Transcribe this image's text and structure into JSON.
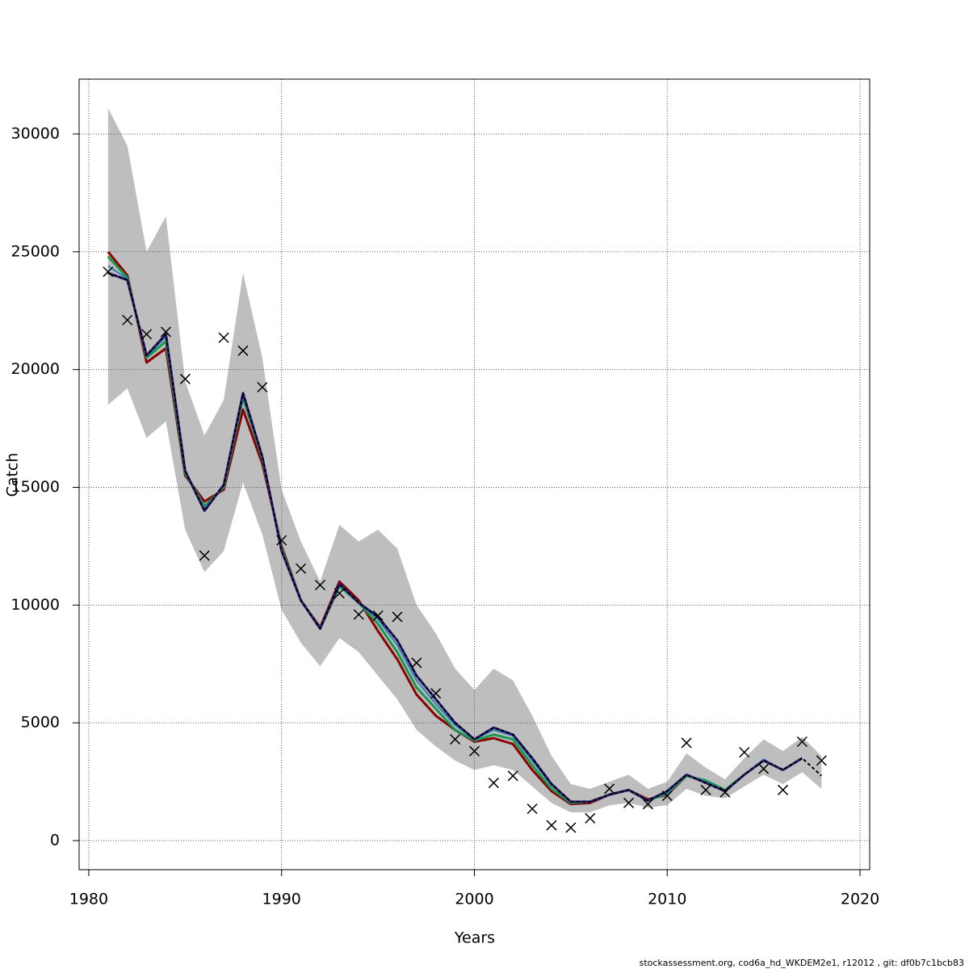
{
  "chart_data": {
    "type": "line",
    "xlabel": "Years",
    "ylabel": "Catch",
    "footer": "stockassessment.org, cod6a_hd_WKDEM2e1, r12012 , git: df0b7c1bcb83",
    "x": [
      1981,
      1982,
      1983,
      1984,
      1985,
      1986,
      1987,
      1988,
      1989,
      1990,
      1991,
      1992,
      1993,
      1994,
      1995,
      1996,
      1997,
      1998,
      1999,
      2000,
      2001,
      2002,
      2003,
      2004,
      2005,
      2006,
      2007,
      2008,
      2009,
      2010,
      2011,
      2012,
      2013,
      2014,
      2015,
      2016,
      2017,
      2018
    ],
    "xlim": [
      1979.5,
      2020.5
    ],
    "xticks": [
      1980,
      1990,
      2000,
      2010,
      2020
    ],
    "ylim": [
      -1234,
      32330
    ],
    "yticks": [
      0,
      5000,
      10000,
      15000,
      20000,
      25000,
      30000
    ],
    "grid": true,
    "band": {
      "color": "#bebebe",
      "upper": [
        31100,
        29500,
        25000,
        26500,
        19500,
        17200,
        18700,
        24100,
        20500,
        14900,
        12700,
        11000,
        13400,
        12700,
        13200,
        12400,
        10000,
        8800,
        7300,
        6400,
        7300,
        6800,
        5300,
        3600,
        2400,
        2200,
        2500,
        2800,
        2200,
        2500,
        3700,
        3100,
        2600,
        3500,
        4300,
        3800,
        4400,
        3600
      ],
      "lower": [
        18500,
        19200,
        17100,
        17800,
        13200,
        11400,
        12300,
        15200,
        13000,
        9800,
        8400,
        7400,
        8600,
        8000,
        7000,
        6000,
        4700,
        4000,
        3400,
        3000,
        3200,
        3000,
        2300,
        1600,
        1200,
        1200,
        1500,
        1600,
        1400,
        1500,
        2200,
        1900,
        1800,
        2300,
        2800,
        2400,
        2900,
        2200
      ]
    },
    "series": [
      {
        "color": "#8b0000",
        "width": 3,
        "values": [
          25000,
          24000,
          20300,
          20900,
          15500,
          14400,
          14900,
          18300,
          16000,
          12500,
          10200,
          9050,
          11000,
          10200,
          8900,
          7700,
          6200,
          5300,
          4700,
          4200,
          4350,
          4100,
          3000,
          2100,
          1550,
          1600,
          1950,
          2150,
          1750,
          1950,
          2750,
          null,
          null,
          null,
          null,
          null,
          null,
          null
        ]
      },
      {
        "color": "#1a9850",
        "width": 3,
        "values": [
          24800,
          23900,
          20500,
          21200,
          15600,
          14200,
          15000,
          18800,
          16200,
          12400,
          10200,
          9000,
          10800,
          10100,
          9200,
          8000,
          6500,
          5600,
          4700,
          4250,
          4500,
          4300,
          3200,
          2200,
          1600,
          1650,
          1950,
          2150,
          1700,
          2000,
          2750,
          2550,
          2150,
          2800,
          null,
          null,
          null,
          null
        ]
      },
      {
        "color": "#2c7fb8",
        "width": 2,
        "values": [
          24400,
          23850,
          20550,
          21400,
          15650,
          14100,
          15050,
          18900,
          16250,
          12350,
          10200,
          9000,
          10850,
          10100,
          9400,
          8300,
          6800,
          5800,
          4900,
          4300,
          4700,
          4450,
          3400,
          2350,
          1650,
          1650,
          1950,
          2150,
          1700,
          2050,
          2800,
          2500,
          2100,
          2800,
          3450,
          3000,
          null,
          null
        ]
      },
      {
        "color": "#2d1e7a",
        "width": 3,
        "values": [
          24100,
          23800,
          20600,
          21500,
          15700,
          14000,
          15100,
          19000,
          16300,
          12300,
          10200,
          9000,
          10900,
          10100,
          9500,
          8500,
          7000,
          6000,
          5000,
          4300,
          4800,
          4500,
          3500,
          2400,
          1650,
          1650,
          1950,
          2150,
          1700,
          2100,
          2800,
          2450,
          2100,
          2800,
          3400,
          3000,
          3500,
          null
        ]
      },
      {
        "color": "#000000",
        "width": 2,
        "dash": true,
        "values": [
          24100,
          23800,
          20600,
          21500,
          15700,
          14000,
          15100,
          19000,
          16300,
          12300,
          10200,
          9000,
          10900,
          10100,
          9500,
          8500,
          7000,
          6000,
          5000,
          4300,
          4800,
          4500,
          3500,
          2400,
          1650,
          1650,
          1950,
          2150,
          1700,
          2100,
          2800,
          2450,
          2100,
          2800,
          3400,
          3000,
          3500,
          2750
        ]
      }
    ],
    "observed": {
      "color": "#000000",
      "marker": "x",
      "values": [
        24150,
        22100,
        21500,
        21600,
        19600,
        12100,
        21350,
        20800,
        19250,
        12750,
        11550,
        10850,
        10500,
        9600,
        9550,
        9500,
        7550,
        6250,
        4300,
        3800,
        2450,
        2750,
        1350,
        650,
        550,
        950,
        2200,
        1600,
        1550,
        1900,
        4150,
        2150,
        2050,
        3750,
        3050,
        2150,
        4200,
        3400
      ]
    }
  }
}
